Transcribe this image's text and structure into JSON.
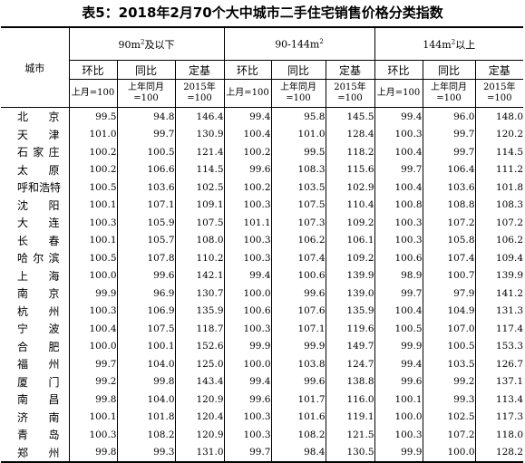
{
  "title": "表5：2018年2月70个大中城市二手住宅销售价格分类指数",
  "header": {
    "city": "城市",
    "groups": [
      {
        "base": "90m",
        "sup": "2",
        "suffix": "及以下"
      },
      {
        "base": "90-144m",
        "sup": "2",
        "suffix": ""
      },
      {
        "base": "144m",
        "sup": "2",
        "suffix": "以上"
      }
    ],
    "sub": [
      "环比",
      "同比",
      "定基"
    ],
    "bases": [
      "上月=100",
      "上年同月=100",
      "2015年=100"
    ]
  },
  "rows": [
    {
      "city": "北京",
      "v": [
        "99.5",
        "94.8",
        "146.4",
        "99.4",
        "95.8",
        "145.5",
        "99.4",
        "96.0",
        "148.0"
      ]
    },
    {
      "city": "天津",
      "v": [
        "101.0",
        "99.7",
        "130.9",
        "100.4",
        "101.0",
        "128.4",
        "100.3",
        "99.7",
        "120.2"
      ]
    },
    {
      "city": "石家庄",
      "v": [
        "100.2",
        "100.5",
        "121.4",
        "100.2",
        "99.5",
        "118.2",
        "100.4",
        "99.7",
        "114.5"
      ]
    },
    {
      "city": "太原",
      "v": [
        "100.2",
        "106.6",
        "114.5",
        "99.6",
        "108.3",
        "115.6",
        "99.7",
        "106.4",
        "111.2"
      ]
    },
    {
      "city": "呼和浩特",
      "v": [
        "100.5",
        "103.6",
        "102.5",
        "100.2",
        "103.5",
        "102.9",
        "100.4",
        "103.6",
        "101.8"
      ]
    },
    {
      "city": "沈阳",
      "v": [
        "100.1",
        "107.1",
        "109.1",
        "100.3",
        "107.5",
        "110.4",
        "100.8",
        "108.8",
        "108.3"
      ]
    },
    {
      "city": "大连",
      "v": [
        "100.3",
        "105.9",
        "107.5",
        "101.1",
        "107.3",
        "109.2",
        "100.3",
        "107.2",
        "107.2"
      ]
    },
    {
      "city": "长春",
      "v": [
        "100.1",
        "105.7",
        "108.0",
        "100.3",
        "106.2",
        "106.1",
        "100.3",
        "105.8",
        "106.2"
      ]
    },
    {
      "city": "哈尔滨",
      "v": [
        "100.5",
        "107.8",
        "110.2",
        "100.3",
        "107.4",
        "109.2",
        "100.6",
        "107.4",
        "109.4"
      ]
    },
    {
      "city": "上海",
      "v": [
        "100.0",
        "99.6",
        "142.1",
        "99.4",
        "100.6",
        "139.9",
        "98.9",
        "100.7",
        "139.9"
      ]
    },
    {
      "city": "南京",
      "v": [
        "99.9",
        "96.9",
        "130.7",
        "100.0",
        "99.6",
        "139.0",
        "99.7",
        "97.9",
        "141.2"
      ]
    },
    {
      "city": "杭州",
      "v": [
        "100.3",
        "106.9",
        "135.9",
        "100.6",
        "107.6",
        "135.9",
        "100.4",
        "104.9",
        "131.3"
      ]
    },
    {
      "city": "宁波",
      "v": [
        "100.4",
        "107.5",
        "118.7",
        "100.3",
        "107.1",
        "119.6",
        "100.5",
        "107.0",
        "117.4"
      ]
    },
    {
      "city": "合肥",
      "v": [
        "100.0",
        "100.1",
        "152.6",
        "99.9",
        "99.9",
        "149.7",
        "99.9",
        "100.5",
        "153.3"
      ]
    },
    {
      "city": "福州",
      "v": [
        "99.7",
        "104.0",
        "125.0",
        "100.0",
        "103.8",
        "124.7",
        "99.4",
        "103.5",
        "126.7"
      ]
    },
    {
      "city": "厦门",
      "v": [
        "99.2",
        "99.8",
        "143.4",
        "99.4",
        "99.6",
        "138.8",
        "99.6",
        "99.2",
        "137.1"
      ]
    },
    {
      "city": "南昌",
      "v": [
        "99.8",
        "104.0",
        "120.9",
        "99.6",
        "101.7",
        "116.0",
        "100.1",
        "99.3",
        "113.4"
      ]
    },
    {
      "city": "济南",
      "v": [
        "100.1",
        "101.8",
        "120.4",
        "100.3",
        "101.6",
        "119.1",
        "100.0",
        "102.5",
        "117.3"
      ]
    },
    {
      "city": "青岛",
      "v": [
        "100.3",
        "108.2",
        "120.9",
        "100.3",
        "108.2",
        "121.5",
        "100.3",
        "107.2",
        "118.0"
      ]
    },
    {
      "city": "郑州",
      "v": [
        "99.8",
        "99.3",
        "131.0",
        "99.7",
        "98.4",
        "130.5",
        "99.9",
        "100.0",
        "128.2"
      ]
    }
  ]
}
